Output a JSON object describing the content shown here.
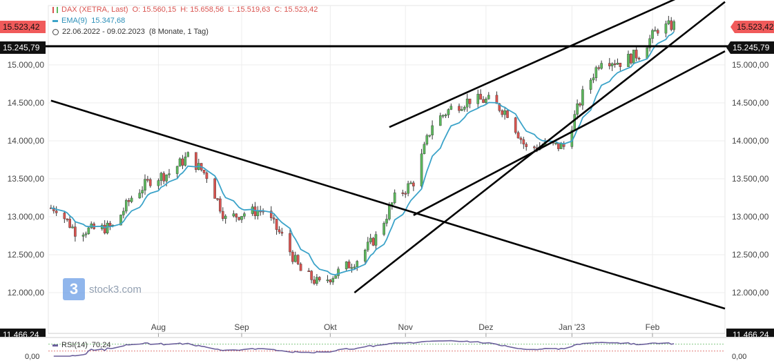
{
  "legend": {
    "instrument": "DAX (XETRA, Last)",
    "open": "O: 15.560,15",
    "high": "H: 15.658,56",
    "low": "L: 15.519,63",
    "close": "C: 15.523,42",
    "ema_label": "EMA(9)",
    "ema_value": "15.347,68",
    "range": "22.06.2022 - 09.02.2023",
    "range_detail": "(8 Monate, 1 Tag)"
  },
  "price_tags": {
    "last_left": "15.523,42",
    "last_right": "15.523,42",
    "line_left": "15.245,79",
    "line_right": "15.245,79",
    "bottom_left": "11.466,24",
    "bottom_right": "11.466,24"
  },
  "logo": {
    "mark": "3",
    "text": "stock3.com"
  },
  "rsi": {
    "label": "RSI(14)",
    "value": "70,24",
    "axis_left": "0,00",
    "axis_right": "0,00"
  },
  "colors": {
    "up": "#5cb85c",
    "down": "#d9534f",
    "ema": "#3ba3c9",
    "trendline": "#000000",
    "rsi": "#6b5f9c",
    "last_tag": "#f05a5a"
  },
  "chart_data": {
    "type": "candlestick",
    "title": "DAX (XETRA, Last)",
    "period": "22.06.2022 - 09.02.2023",
    "ylim": [
      11466.24,
      15900
    ],
    "y_ticks": [
      12000,
      12500,
      13000,
      13500,
      14000,
      14500,
      15000
    ],
    "y_tick_labels": [
      "12.000,00",
      "12.500,00",
      "13.000,00",
      "13.500,00",
      "14.000,00",
      "14.500,00",
      "15.000,00"
    ],
    "x_ticks": [
      "Aug",
      "Sep",
      "Okt",
      "Nov",
      "Dez",
      "Jan '23",
      "Feb"
    ],
    "horizontal_line": 15245.79,
    "last_price": 15523.42,
    "close_series_weekly": [
      {
        "date": "2022-06-24",
        "close": 13118
      },
      {
        "date": "2022-07-01",
        "close": 12813
      },
      {
        "date": "2022-07-08",
        "close": 12833
      },
      {
        "date": "2022-07-15",
        "close": 12865
      },
      {
        "date": "2022-07-22",
        "close": 13254
      },
      {
        "date": "2022-07-29",
        "close": 13484
      },
      {
        "date": "2022-08-05",
        "close": 13574
      },
      {
        "date": "2022-08-12",
        "close": 13795
      },
      {
        "date": "2022-08-19",
        "close": 13544
      },
      {
        "date": "2022-08-26",
        "close": 12971
      },
      {
        "date": "2022-09-02",
        "close": 13050
      },
      {
        "date": "2022-09-09",
        "close": 13088
      },
      {
        "date": "2022-09-16",
        "close": 12741
      },
      {
        "date": "2022-09-23",
        "close": 12284
      },
      {
        "date": "2022-09-30",
        "close": 12114
      },
      {
        "date": "2022-10-07",
        "close": 12273
      },
      {
        "date": "2022-10-14",
        "close": 12438
      },
      {
        "date": "2022-10-21",
        "close": 12731
      },
      {
        "date": "2022-10-28",
        "close": 13243
      },
      {
        "date": "2022-11-04",
        "close": 13460
      },
      {
        "date": "2022-11-11",
        "close": 14225
      },
      {
        "date": "2022-11-18",
        "close": 14431
      },
      {
        "date": "2022-11-25",
        "close": 14541
      },
      {
        "date": "2022-12-02",
        "close": 14529
      },
      {
        "date": "2022-12-09",
        "close": 14370
      },
      {
        "date": "2022-12-16",
        "close": 13894
      },
      {
        "date": "2022-12-23",
        "close": 13941
      },
      {
        "date": "2022-12-30",
        "close": 13924
      },
      {
        "date": "2023-01-06",
        "close": 14610
      },
      {
        "date": "2023-01-13",
        "close": 15087
      },
      {
        "date": "2023-01-20",
        "close": 15034
      },
      {
        "date": "2023-01-27",
        "close": 15150
      },
      {
        "date": "2023-02-03",
        "close": 15476
      },
      {
        "date": "2023-02-09",
        "close": 15523.42
      }
    ],
    "ema_period": 9,
    "ema_last": 15347.68,
    "trendlines": [
      {
        "from": {
          "date": "2022-06-22",
          "value": 14530
        },
        "to": {
          "date": "2023-02-28",
          "value": 11790
        }
      },
      {
        "from": {
          "date": "2022-10-26",
          "value": 14180
        },
        "to": {
          "date": "2023-02-16",
          "value": 15970
        }
      },
      {
        "from": {
          "date": "2022-10-13",
          "value": 12000
        },
        "to": {
          "date": "2023-02-28",
          "value": 15830
        }
      },
      {
        "from": {
          "date": "2022-11-04",
          "value": 13020
        },
        "to": {
          "date": "2023-02-28",
          "value": 15180
        }
      }
    ],
    "rsi": {
      "period": 14,
      "last": 70.24
    }
  }
}
